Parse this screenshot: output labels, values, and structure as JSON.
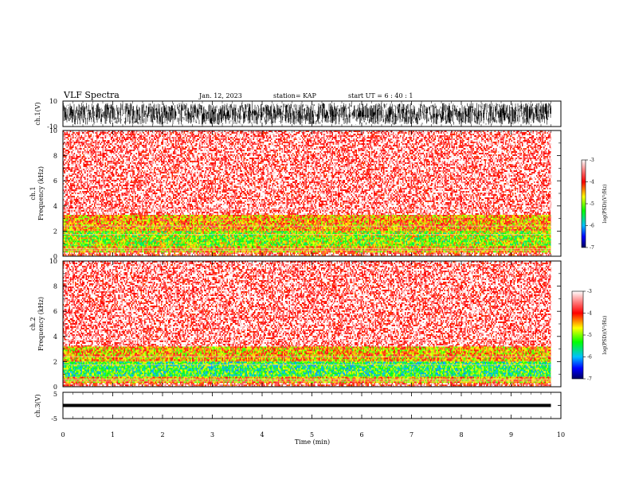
{
  "header": {
    "title": "VLF Spectra",
    "date": "Jan. 12, 2023",
    "station": "station= KAP",
    "start": "start UT =  6 : 40 : 1"
  },
  "colors": {
    "red": "#ff0000",
    "yellow": "#ffff00",
    "green": "#00ff00",
    "blue": "#0000ff",
    "darkblue": "#000080",
    "waveform": "#000000"
  },
  "chart_data": [
    {
      "type": "line",
      "panel": "ch1-waveform",
      "ylabel": "ch.1(V)",
      "ylim": [
        -10,
        10
      ],
      "yticks": [
        "10",
        "-10"
      ],
      "series": [
        {
          "values_note_free": true,
          "amplitude_range": [
            -9,
            9
          ]
        }
      ],
      "x_range_min": [
        0,
        9.8
      ]
    },
    {
      "type": "heatmap",
      "panel": "ch1-spectrogram",
      "ylabel": "ch.1\nFrequency (kHz)",
      "ylim": [
        0,
        10
      ],
      "yticks": [
        "0",
        "2",
        "4",
        "6",
        "8",
        "10"
      ],
      "bands_khz": [
        {
          "from": 0.0,
          "to": 0.3,
          "level": -3.5
        },
        {
          "from": 0.3,
          "to": 0.8,
          "level": -4.3
        },
        {
          "from": 0.8,
          "to": 2.0,
          "level": -4.8
        },
        {
          "from": 2.0,
          "to": 3.3,
          "level": -4.2
        },
        {
          "from": 3.3,
          "to": 10.0,
          "level": -3.2
        }
      ],
      "colorbar": {
        "label": "log(PSD)(V²/Hz)",
        "range": [
          -7,
          -3
        ],
        "ticks": [
          "-3",
          "-4",
          "-5",
          "-6",
          "-7"
        ]
      }
    },
    {
      "type": "heatmap",
      "panel": "ch2-spectrogram",
      "ylabel": "ch.2\nFrequency (kHz)",
      "ylim": [
        0,
        10
      ],
      "yticks": [
        "0",
        "2",
        "4",
        "6",
        "8",
        "10"
      ],
      "bands_khz": [
        {
          "from": 0.0,
          "to": 0.3,
          "level": -3.5
        },
        {
          "from": 0.3,
          "to": 0.8,
          "level": -4.3
        },
        {
          "from": 0.8,
          "to": 2.0,
          "level": -5.2
        },
        {
          "from": 2.0,
          "to": 3.2,
          "level": -4.3
        },
        {
          "from": 3.2,
          "to": 10.0,
          "level": -3.2
        }
      ],
      "colorbar": {
        "label": "log(PSD)(V²/Hz)",
        "range": [
          -7,
          -3
        ],
        "ticks": [
          "-3",
          "-4",
          "-5",
          "-6",
          "-7"
        ]
      }
    },
    {
      "type": "line",
      "panel": "ch3-waveform",
      "ylabel": "ch.3(V)",
      "ylim": [
        -5,
        5
      ],
      "yticks": [
        "5",
        "-5"
      ],
      "series": [
        {
          "amplitude_range": [
            -0.6,
            0.6
          ],
          "offset": 0
        }
      ],
      "xlabel": "Time (min)",
      "xlim": [
        0,
        10
      ],
      "xticks": [
        "0",
        "1",
        "2",
        "3",
        "4",
        "5",
        "6",
        "7",
        "8",
        "9",
        "10"
      ]
    }
  ]
}
